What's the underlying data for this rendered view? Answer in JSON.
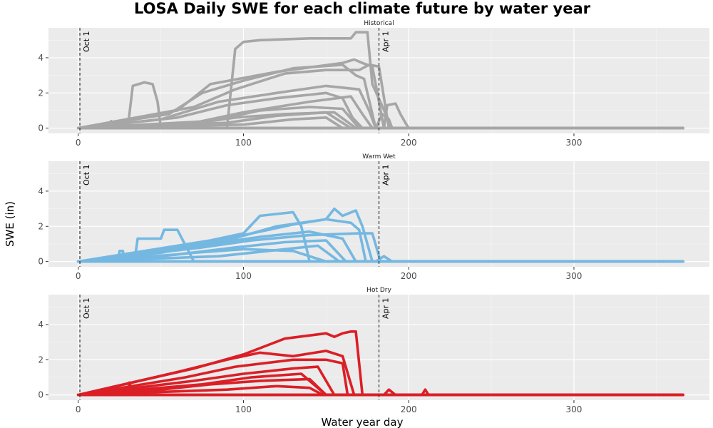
{
  "chart_data": {
    "type": "line",
    "title": "LOSA Daily SWE for each climate future by water year",
    "xlabel": "Water year day",
    "ylabel": "SWE (in)",
    "xlim": [
      -18,
      382
    ],
    "ylim": [
      -0.3,
      5.7
    ],
    "x_ticks": [
      0,
      100,
      200,
      300
    ],
    "y_ticks": [
      0,
      2,
      4
    ],
    "grid": true,
    "reference_lines": [
      {
        "x": 1,
        "label": "Oct 1"
      },
      {
        "x": 182,
        "label": "Apr 1"
      }
    ],
    "panels": [
      {
        "label": "Historical",
        "color": "#a6a6a6",
        "series": [
          {
            "x": [
              0,
              30,
              33,
              40,
              45,
              48,
              50,
              200,
              366
            ],
            "y": [
              0,
              0,
              2.4,
              2.6,
              2.5,
              1.5,
              0,
              0,
              0
            ]
          },
          {
            "x": [
              0,
              90,
              95,
              100,
              110,
              140,
              150,
              165,
              168,
              175,
              178,
              190,
              366
            ],
            "y": [
              0,
              0,
              4.5,
              4.9,
              5.0,
              5.1,
              5.1,
              5.1,
              5.45,
              5.45,
              2.5,
              0,
              0
            ]
          },
          {
            "x": [
              0,
              60,
              80,
              120,
              160,
              167,
              172,
              178,
              185,
              366
            ],
            "y": [
              0,
              1.0,
              2.5,
              3.2,
              3.7,
              3.9,
              3.7,
              3.5,
              0,
              0
            ]
          },
          {
            "x": [
              0,
              55,
              75,
              100,
              130,
              160,
              168,
              173,
              180,
              366
            ],
            "y": [
              0,
              0.8,
              2.0,
              2.7,
              3.4,
              3.6,
              3.0,
              2.8,
              0,
              0
            ]
          },
          {
            "x": [
              0,
              70,
              95,
              125,
              150,
              170,
              176,
              182,
              188,
              366
            ],
            "y": [
              0,
              1.2,
              2.2,
              3.1,
              3.3,
              3.3,
              3.6,
              3.5,
              0,
              0
            ]
          },
          {
            "x": [
              0,
              50,
              85,
              120,
              150,
              170,
              176,
              180,
              366
            ],
            "y": [
              0,
              0.5,
              1.5,
              2.0,
              2.4,
              2.2,
              1.0,
              0,
              0
            ]
          },
          {
            "x": [
              0,
              60,
              90,
              120,
              150,
              160,
              166,
              172,
              366
            ],
            "y": [
              0,
              0.6,
              1.3,
              1.7,
              2.0,
              1.7,
              0.6,
              0,
              0
            ]
          },
          {
            "x": [
              0,
              70,
              100,
              140,
              165,
              172,
              178,
              366
            ],
            "y": [
              0,
              0.3,
              0.9,
              1.5,
              1.8,
              0.8,
              0,
              0
            ]
          },
          {
            "x": [
              0,
              80,
              110,
              140,
              160,
              170,
              366
            ],
            "y": [
              0,
              0.4,
              1.0,
              1.2,
              1.1,
              0,
              0
            ]
          },
          {
            "x": [
              0,
              90,
              120,
              150,
              165,
              366
            ],
            "y": [
              0,
              0.3,
              0.7,
              0.9,
              0,
              0
            ]
          },
          {
            "x": [
              0,
              65,
              95,
              125,
              155,
              168,
              366
            ],
            "y": [
              0,
              0.2,
              0.6,
              0.8,
              0.9,
              0,
              0
            ]
          },
          {
            "x": [
              0,
              100,
              130,
              150,
              160,
              366
            ],
            "y": [
              0,
              0.2,
              0.5,
              0.6,
              0,
              0
            ]
          },
          {
            "x": [
              0,
              185,
              187,
              192,
              195,
              198,
              200,
              366
            ],
            "y": [
              0,
              0,
              1.3,
              1.4,
              0.8,
              0.3,
              0,
              0
            ]
          },
          {
            "x": [
              0,
              180,
              184,
              188,
              190,
              366
            ],
            "y": [
              0,
              0,
              0.8,
              0.5,
              0,
              0
            ]
          },
          {
            "x": [
              0,
              18,
              20,
              22,
              366
            ],
            "y": [
              0,
              0,
              0.4,
              0,
              0
            ]
          }
        ]
      },
      {
        "label": "Warm Wet",
        "color": "#74b8e2",
        "series": [
          {
            "x": [
              0,
              24,
              25,
              27,
              28,
              366
            ],
            "y": [
              0,
              0,
              0.6,
              0.6,
              0,
              0
            ]
          },
          {
            "x": [
              0,
              34,
              36,
              50,
              52,
              60,
              70,
              366
            ],
            "y": [
              0,
              0,
              1.3,
              1.3,
              1.8,
              1.8,
              0,
              0
            ]
          },
          {
            "x": [
              0,
              80,
              100,
              110,
              120,
              130,
              135,
              140,
              366
            ],
            "y": [
              0,
              1.2,
              1.6,
              2.6,
              2.7,
              2.8,
              2.0,
              0,
              0
            ]
          },
          {
            "x": [
              0,
              60,
              90,
              120,
              150,
              155,
              160,
              168,
              172,
              178,
              366
            ],
            "y": [
              0,
              0.8,
              1.2,
              2.0,
              2.4,
              3.0,
              2.6,
              2.9,
              2.0,
              0,
              0
            ]
          },
          {
            "x": [
              0,
              70,
              100,
              130,
              150,
              165,
              170,
              174,
              366
            ],
            "y": [
              0,
              0.9,
              1.5,
              2.1,
              2.4,
              2.2,
              1.8,
              0,
              0
            ]
          },
          {
            "x": [
              0,
              75,
              105,
              140,
              170,
              178,
              183,
              366
            ],
            "y": [
              0,
              0.8,
              1.2,
              1.5,
              1.6,
              1.6,
              0,
              0
            ]
          },
          {
            "x": [
              0,
              50,
              80,
              110,
              140,
              160,
              168,
              366
            ],
            "y": [
              0,
              0.5,
              1.0,
              1.4,
              1.7,
              1.3,
              0,
              0
            ]
          },
          {
            "x": [
              0,
              60,
              95,
              125,
              150,
              162,
              366
            ],
            "y": [
              0,
              0.4,
              0.8,
              1.1,
              1.2,
              0,
              0
            ]
          },
          {
            "x": [
              0,
              85,
              115,
              145,
              158,
              366
            ],
            "y": [
              0,
              0.3,
              0.6,
              0.9,
              0,
              0
            ]
          },
          {
            "x": [
              0,
              40,
              70,
              100,
              130,
              150,
              366
            ],
            "y": [
              0,
              0.2,
              0.5,
              0.7,
              0.6,
              0,
              0
            ]
          },
          {
            "x": [
              0,
              180,
              185,
              190,
              366
            ],
            "y": [
              0,
              0,
              0.3,
              0,
              0
            ]
          }
        ]
      },
      {
        "label": "Hot Dry",
        "color": "#db1f26",
        "series": [
          {
            "x": [
              0,
              12,
              13,
              15,
              30,
              31,
              33,
              366
            ],
            "y": [
              0,
              0,
              0.2,
              0,
              0,
              0.7,
              0,
              0
            ]
          },
          {
            "x": [
              0,
              70,
              100,
              125,
              150,
              155,
              160,
              165,
              168,
              172,
              366
            ],
            "y": [
              0,
              1.5,
              2.3,
              3.2,
              3.5,
              3.3,
              3.5,
              3.6,
              3.6,
              0,
              0
            ]
          },
          {
            "x": [
              0,
              60,
              90,
              110,
              130,
              150,
              160,
              167,
              366
            ],
            "y": [
              0,
              1.3,
              2.0,
              2.4,
              2.2,
              2.5,
              2.2,
              0,
              0
            ]
          },
          {
            "x": [
              0,
              65,
              95,
              130,
              150,
              160,
              163,
              366
            ],
            "y": [
              0,
              1.0,
              1.6,
              2.0,
              2.0,
              1.8,
              0,
              0
            ]
          },
          {
            "x": [
              0,
              70,
              100,
              130,
              145,
              155,
              366
            ],
            "y": [
              0,
              0.8,
              1.2,
              1.5,
              1.6,
              0,
              0
            ]
          },
          {
            "x": [
              0,
              75,
              105,
              135,
              150,
              366
            ],
            "y": [
              0,
              0.6,
              1.0,
              1.2,
              0,
              0
            ]
          },
          {
            "x": [
              0,
              50,
              80,
              110,
              140,
              150,
              366
            ],
            "y": [
              0,
              0.3,
              0.6,
              0.8,
              0.9,
              0,
              0
            ]
          },
          {
            "x": [
              0,
              90,
              120,
              140,
              148,
              366
            ],
            "y": [
              0,
              0.3,
              0.5,
              0.4,
              0,
              0
            ]
          },
          {
            "x": [
              0,
              185,
              188,
              192,
              366
            ],
            "y": [
              0,
              0,
              0.3,
              0,
              0
            ]
          },
          {
            "x": [
              0,
              208,
              210,
              212,
              366
            ],
            "y": [
              0,
              0,
              0.3,
              0,
              0
            ]
          }
        ]
      }
    ]
  }
}
